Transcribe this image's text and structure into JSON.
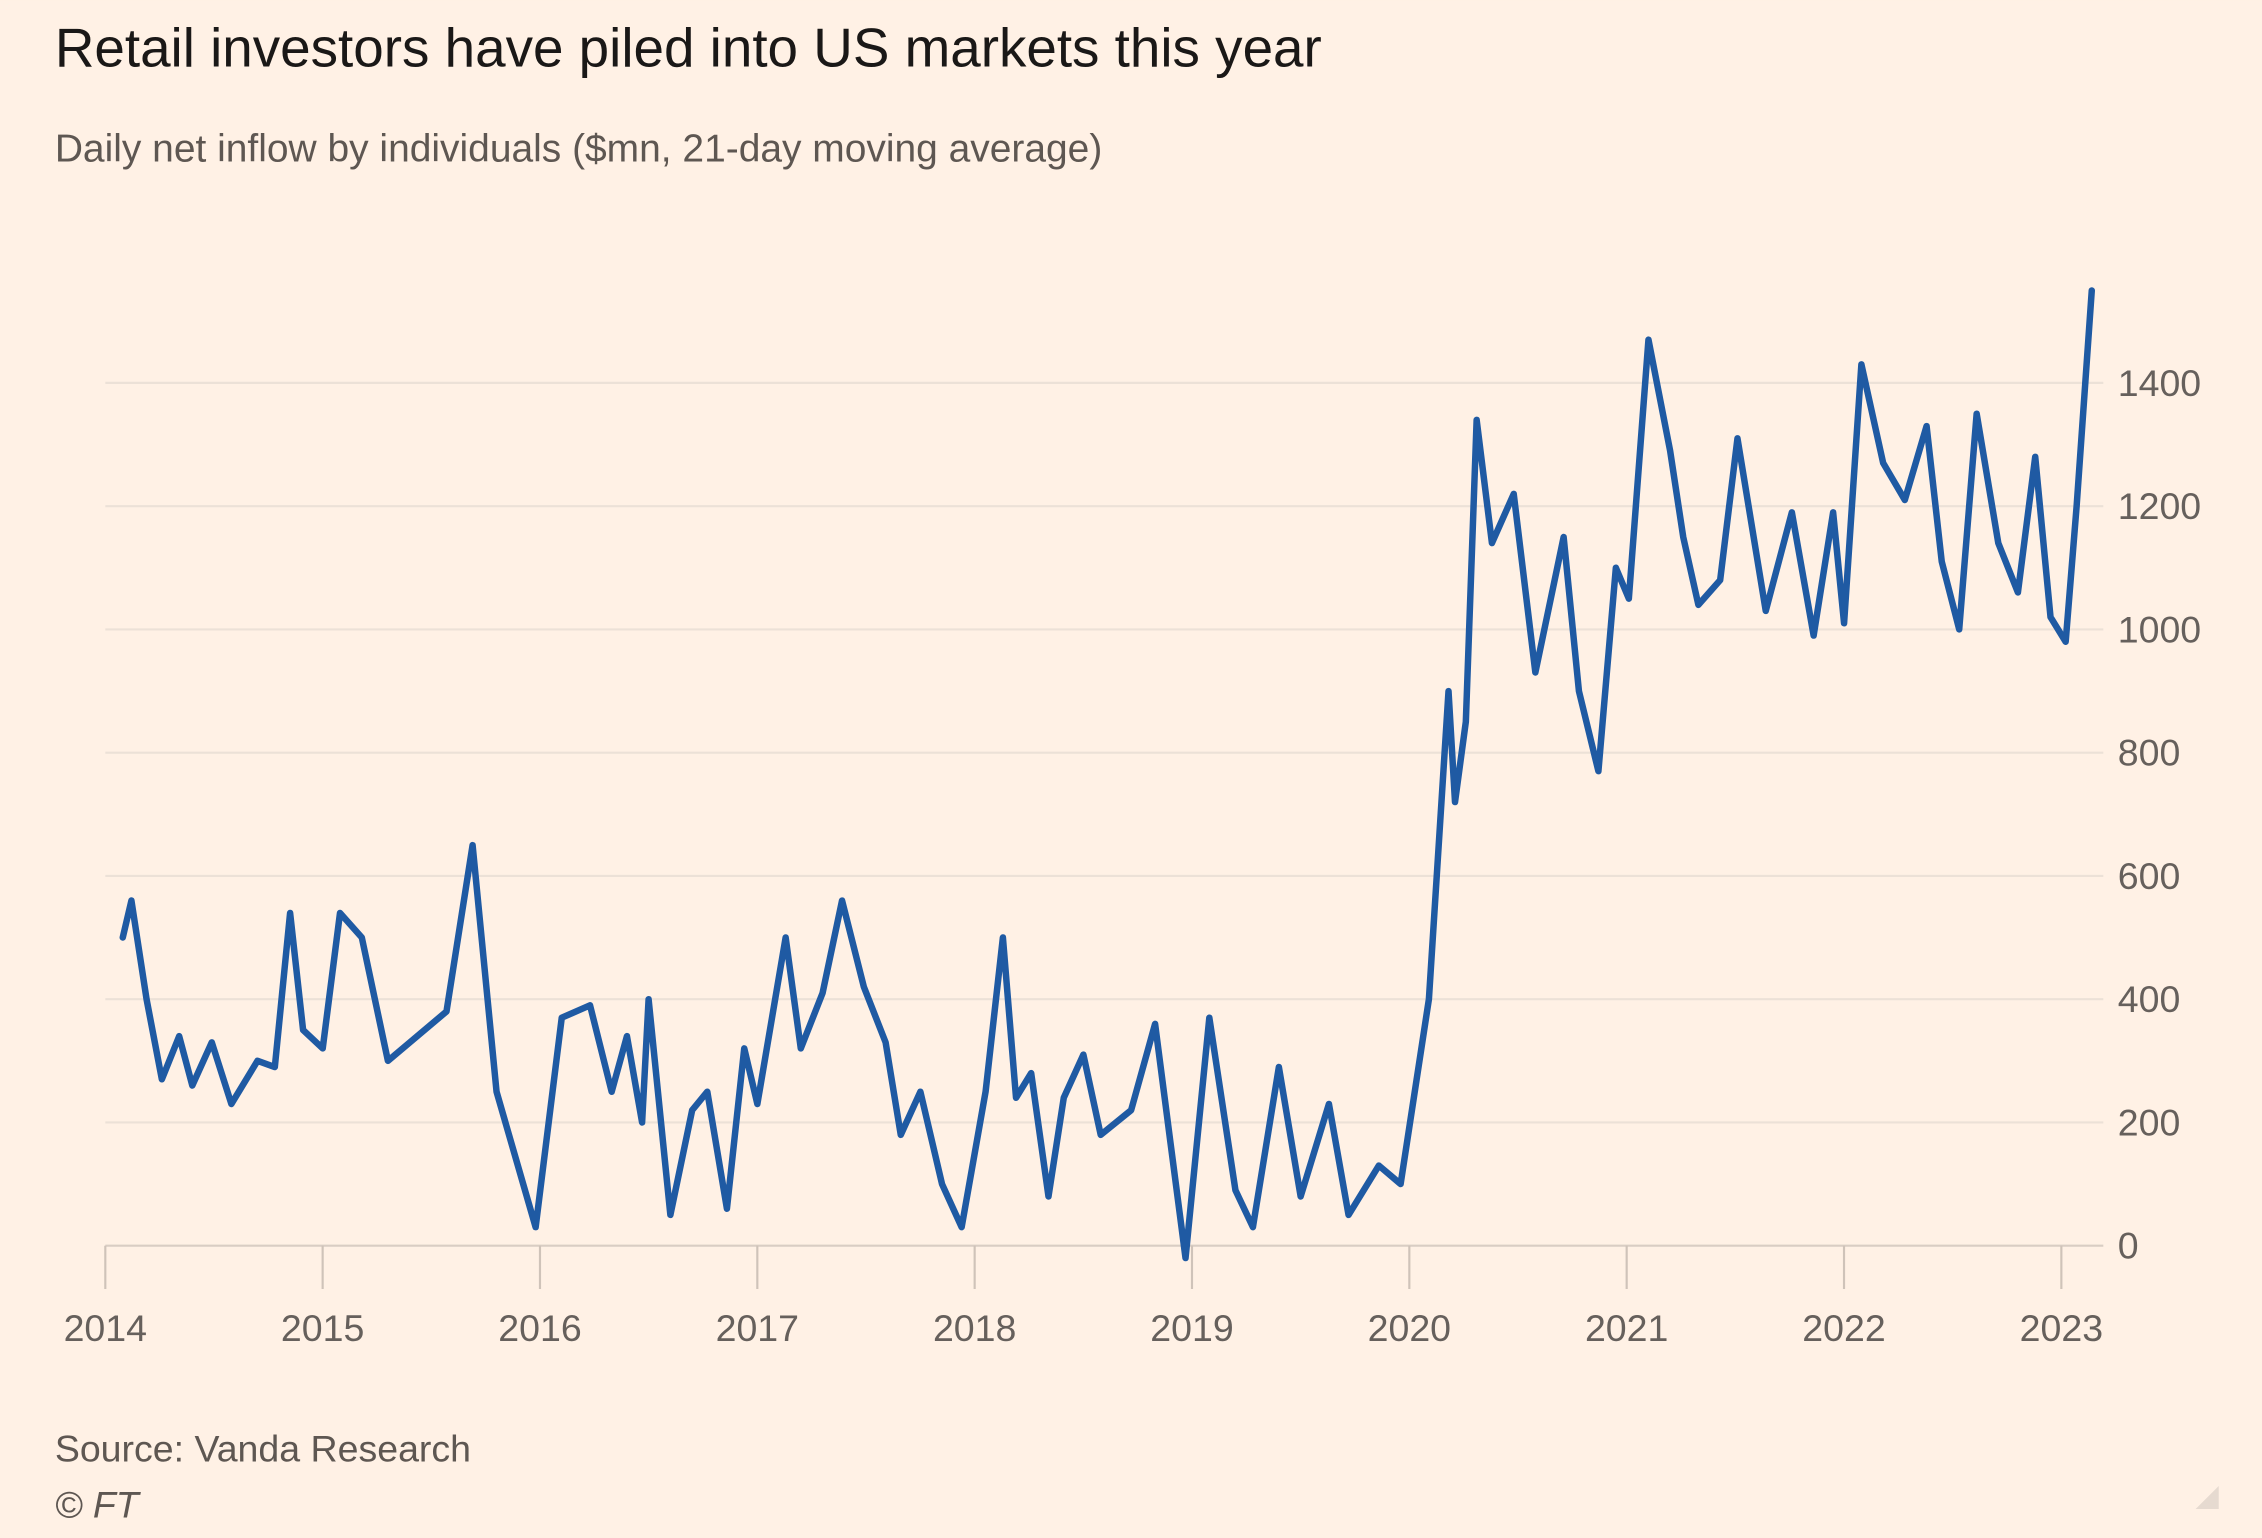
{
  "chart_data": {
    "type": "line",
    "title": "Retail investors have piled into US markets this year",
    "subtitle": "Daily net inflow by individuals ($mn, 21-day moving average)",
    "source": "Source: Vanda Research",
    "credit": "© FT",
    "color": "#1f5aa3",
    "x": [
      2014.08,
      2014.12,
      2014.19,
      2014.26,
      2014.34,
      2014.4,
      2014.49,
      2014.58,
      2014.7,
      2014.78,
      2014.85,
      2014.91,
      2015.0,
      2015.08,
      2015.18,
      2015.3,
      2015.57,
      2015.69,
      2015.8,
      2015.98,
      2016.1,
      2016.23,
      2016.33,
      2016.4,
      2016.47,
      2016.5,
      2016.6,
      2016.7,
      2016.77,
      2016.86,
      2016.94,
      2017.0,
      2017.13,
      2017.2,
      2017.3,
      2017.39,
      2017.49,
      2017.59,
      2017.66,
      2017.75,
      2017.85,
      2017.94,
      2018.05,
      2018.13,
      2018.19,
      2018.26,
      2018.34,
      2018.41,
      2018.5,
      2018.58,
      2018.72,
      2018.83,
      2018.9,
      2018.97,
      2019.08,
      2019.2,
      2019.28,
      2019.4,
      2019.5,
      2019.63,
      2019.72,
      2019.86,
      2019.96,
      2020.09,
      2020.18,
      2020.21,
      2020.26,
      2020.31,
      2020.38,
      2020.48,
      2020.58,
      2020.71,
      2020.78,
      2020.87,
      2020.95,
      2021.01,
      2021.1,
      2021.2,
      2021.26,
      2021.33,
      2021.43,
      2021.51,
      2021.64,
      2021.76,
      2021.86,
      2021.95,
      2022.0,
      2022.08,
      2022.18,
      2022.28,
      2022.38,
      2022.45,
      2022.53,
      2022.61,
      2022.71,
      2022.8,
      2022.88,
      2022.95,
      2023.02,
      2023.07,
      2023.14
    ],
    "values": [
      500,
      560,
      400,
      270,
      340,
      260,
      330,
      230,
      300,
      290,
      540,
      350,
      320,
      540,
      500,
      300,
      380,
      650,
      250,
      30,
      370,
      390,
      250,
      340,
      200,
      400,
      50,
      220,
      250,
      60,
      320,
      230,
      500,
      320,
      410,
      560,
      420,
      330,
      180,
      250,
      100,
      30,
      250,
      500,
      240,
      280,
      80,
      240,
      310,
      180,
      220,
      360,
      170,
      -20,
      370,
      90,
      30,
      290,
      80,
      230,
      50,
      130,
      100,
      400,
      900,
      720,
      850,
      1340,
      1140,
      1220,
      930,
      1150,
      900,
      770,
      1100,
      1050,
      1470,
      1290,
      1150,
      1040,
      1080,
      1310,
      1030,
      1190,
      990,
      1190,
      1010,
      1430,
      1270,
      1210,
      1330,
      1110,
      1000,
      1350,
      1140,
      1060,
      1280,
      1020,
      980,
      1200,
      1550
    ],
    "xlim": [
      2014,
      2023.14
    ],
    "xticks": [
      2014,
      2015,
      2016,
      2017,
      2018,
      2019,
      2020,
      2021,
      2022,
      2023
    ],
    "ylim": [
      -20,
      1560
    ],
    "yticks": [
      0,
      200,
      400,
      600,
      800,
      1000,
      1200,
      1400
    ],
    "grid": true
  }
}
